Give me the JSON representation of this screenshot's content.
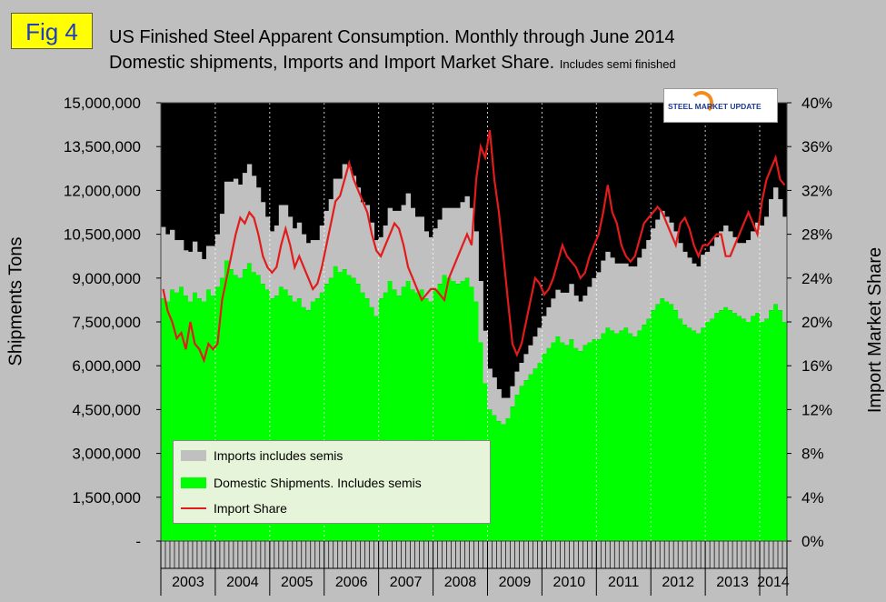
{
  "badge": "Fig 4",
  "title_line1": "US Finished Steel Apparent Consumption. Monthly through June 2014",
  "title_line2_main": "Domestic shipments, Imports and Import Market Share.",
  "title_line2_small": "Includes semi finished",
  "ylabel_left": "Shipments Tons",
  "ylabel_right": "Import Market Share %",
  "logo": {
    "part1": "STEEL",
    "part2": "MARKET UPDATE"
  },
  "legend": {
    "imports": "Imports includes semis",
    "domestic": "Domestic Shipments. Includes semis",
    "share": "Import Share"
  },
  "colors": {
    "imports": "#c0c0c0",
    "domestic": "#00ff00",
    "share": "#e21b1b",
    "plot_bg": "#000000"
  },
  "chart_data": {
    "type": "bar",
    "stacked": true,
    "start": "2003-01",
    "end": "2014-06",
    "x_tick_labels": [
      "2003",
      "2004",
      "2005",
      "2006",
      "2007",
      "2008",
      "2009",
      "2010",
      "2011",
      "2012",
      "2013",
      "2014"
    ],
    "y_left_ticks": [
      "-",
      "1,500,000",
      "3,000,000",
      "4,500,000",
      "6,000,000",
      "7,500,000",
      "9,000,000",
      "10,500,000",
      "12,000,000",
      "13,500,000",
      "15,000,000"
    ],
    "y_left_range": [
      0,
      15000000
    ],
    "y_right_ticks": [
      "0%",
      "4%",
      "8%",
      "12%",
      "16%",
      "20%",
      "24%",
      "28%",
      "32%",
      "36%",
      "40%"
    ],
    "y_right_range": [
      0,
      40
    ],
    "grid": "vertical year lines",
    "legend_position": "bottom-left",
    "series": [
      {
        "name": "Imports includes semis",
        "axis": "left",
        "values": [
          2450000,
          2300000,
          2050000,
          1800000,
          1600000,
          1550000,
          1700000,
          1750000,
          1600000,
          1450000,
          1500000,
          1700000,
          1800000,
          2200000,
          2700000,
          3000000,
          3300000,
          3200000,
          3300000,
          3400000,
          3300000,
          3000000,
          2800000,
          2500000,
          2300000,
          2400000,
          2800000,
          2900000,
          2700000,
          2500000,
          2600000,
          2500000,
          2300000,
          2100000,
          2000000,
          2300000,
          2500000,
          2700000,
          3000000,
          3200000,
          3600000,
          3700000,
          3500000,
          3300000,
          3100000,
          3200000,
          2900000,
          2600000,
          2100000,
          2300000,
          2500000,
          2700000,
          2900000,
          2800000,
          3000000,
          2800000,
          2600000,
          2500000,
          2300000,
          2200000,
          2100000,
          2200000,
          2300000,
          2400000,
          2500000,
          2600000,
          2700000,
          2800000,
          2700000,
          2400000,
          2100000,
          1800000,
          1400000,
          1300000,
          1100000,
          900000,
          700000,
          700000,
          800000,
          800000,
          900000,
          1000000,
          1100000,
          1200000,
          1300000,
          1400000,
          1500000,
          1600000,
          1700000,
          1800000,
          1900000,
          1800000,
          1700000,
          1700000,
          1900000,
          2100000,
          2300000,
          2500000,
          2600000,
          2500000,
          2400000,
          2300000,
          2200000,
          2300000,
          2400000,
          2500000,
          2600000,
          2700000,
          2800000,
          2900000,
          3000000,
          2900000,
          2800000,
          2700000,
          2600000,
          2500000,
          2400000,
          2300000,
          2300000,
          2500000,
          2400000,
          2500000,
          2600000,
          2700000,
          2800000,
          2700000,
          2600000,
          2500000,
          2600000,
          2800000,
          2900000,
          3100000,
          3300000,
          3500000,
          3800000,
          4000000,
          3800000,
          3600000
        ]
      },
      {
        "name": "Domestic Shipments. Includes semis",
        "axis": "left",
        "values": [
          8300000,
          8200000,
          8600000,
          8500000,
          8700000,
          8400000,
          8200000,
          8500000,
          8300000,
          8200000,
          8600000,
          8400000,
          8700000,
          9000000,
          9600000,
          9300000,
          9100000,
          9000000,
          9300000,
          9500000,
          9200000,
          9100000,
          8800000,
          8600000,
          8300000,
          8400000,
          8700000,
          8600000,
          8400000,
          8200000,
          8300000,
          8000000,
          7900000,
          8200000,
          8300000,
          8500000,
          8800000,
          9000000,
          9400000,
          9200000,
          9300000,
          9100000,
          9000000,
          8800000,
          8500000,
          8300000,
          8000000,
          7700000,
          8300000,
          8500000,
          8900000,
          8600000,
          8400000,
          8700000,
          8900000,
          8600000,
          8500000,
          8600000,
          8300000,
          8200000,
          8600000,
          8800000,
          9100000,
          9000000,
          8900000,
          8800000,
          8900000,
          9000000,
          8700000,
          8200000,
          6800000,
          5400000,
          4500000,
          4300000,
          4100000,
          4000000,
          4200000,
          4600000,
          5000000,
          5300000,
          5500000,
          5700000,
          5900000,
          6100000,
          6400000,
          6600000,
          6800000,
          7000000,
          6800000,
          6700000,
          6900000,
          6600000,
          6500000,
          6700000,
          6800000,
          6900000,
          6900000,
          7100000,
          7300000,
          7200000,
          7100000,
          7200000,
          7300000,
          7100000,
          7000000,
          7200000,
          7400000,
          7600000,
          7900000,
          8100000,
          8300000,
          8200000,
          8100000,
          7900000,
          7600000,
          7400000,
          7300000,
          7200000,
          7100000,
          7300000,
          7500000,
          7600000,
          7800000,
          7900000,
          8000000,
          7900000,
          7800000,
          7700000,
          7600000,
          7500000,
          7700000,
          7800000,
          7500000,
          7600000,
          7900000,
          8100000,
          7900000,
          7500000
        ]
      },
      {
        "name": "Import Share",
        "axis": "right",
        "type": "line",
        "values": [
          23,
          21,
          20,
          18.5,
          19,
          17.5,
          20,
          18,
          17.5,
          16.5,
          18,
          17.5,
          18,
          22,
          24,
          26,
          28,
          29.5,
          29,
          30,
          29.5,
          28,
          26,
          25,
          24.5,
          25,
          27,
          28.5,
          27,
          25,
          26,
          25,
          24,
          23,
          23.5,
          25,
          27,
          29,
          31,
          31.5,
          33,
          34.5,
          33,
          32,
          31,
          30,
          28,
          26.5,
          26,
          27,
          28,
          29,
          28.5,
          27,
          25,
          24,
          23,
          22,
          22.5,
          23,
          23,
          22.5,
          22,
          24,
          25,
          26,
          27,
          28,
          27,
          33,
          36,
          35,
          37.5,
          33,
          30,
          26,
          22,
          18,
          17,
          18,
          20,
          22,
          24,
          23.5,
          22.5,
          23,
          24,
          25.5,
          27,
          26,
          25.5,
          25,
          24,
          24.5,
          26,
          27,
          28,
          30,
          32.5,
          30,
          29,
          27,
          26,
          25.5,
          26,
          27.5,
          29,
          29.5,
          30,
          30.5,
          30,
          29,
          28,
          27,
          29,
          29.5,
          28.5,
          27,
          26,
          27,
          27,
          27.5,
          28,
          28,
          26,
          26,
          27,
          28,
          29,
          30,
          29,
          28,
          31,
          33,
          34,
          35,
          33,
          32.5
        ]
      }
    ]
  }
}
